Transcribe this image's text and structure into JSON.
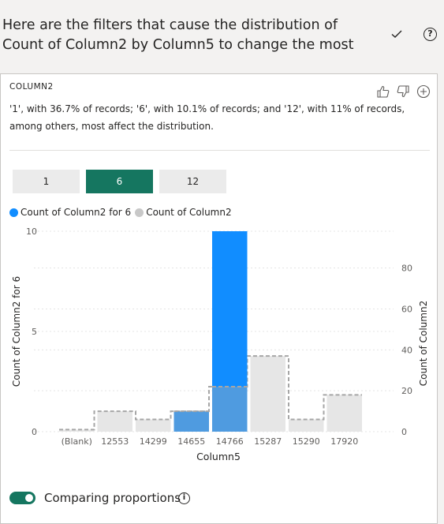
{
  "header": {
    "title": "Here are the filters that cause the distribution of Count of Column2 by Column5 to change the most",
    "check_icon": "checkmark-icon",
    "help_icon": "help-icon",
    "help_glyph": "?"
  },
  "card": {
    "heading": "COLUMN2",
    "description": "'1', with 36.7% of records; '6', with 10.1% of records; and '12', with 11% of records, among others, most affect the distribution.",
    "actions": [
      "thumbs-up-icon",
      "thumbs-down-icon",
      "plus-circle-icon"
    ],
    "filters": [
      {
        "label": "1",
        "active": false
      },
      {
        "label": "6",
        "active": true
      },
      {
        "label": "12",
        "active": false
      }
    ],
    "legend": [
      {
        "label": "Count of Column2 for 6",
        "color": "#118dff"
      },
      {
        "label": "Count of Column2",
        "color": "#c8c8c8"
      }
    ],
    "toggle": {
      "label": "Comparing proportions",
      "on": true,
      "info_glyph": "i"
    }
  },
  "colors": {
    "accent": "#157660",
    "series_primary": "#118dff",
    "series_overlap": "#4f9be0",
    "series_secondary": "#e6e6e6"
  },
  "chart_data": {
    "type": "bar",
    "categories": [
      "(Blank)",
      "12553",
      "14299",
      "14655",
      "14766",
      "15287",
      "15290",
      "17920"
    ],
    "xlabel": "Column5",
    "ylabel": "Count of Column2 for 6",
    "y2label": "Count of Column2",
    "ylim": [
      0,
      10
    ],
    "y2lim": [
      0,
      98
    ],
    "yticks": [
      0,
      5,
      10
    ],
    "y2ticks": [
      0,
      20,
      40,
      60,
      80
    ],
    "series": [
      {
        "name": "Count of Column2 for 6",
        "axis": "left",
        "values": [
          0,
          0,
          0,
          1,
          10,
          0,
          0,
          0
        ]
      },
      {
        "name": "Count of Column2",
        "axis": "right",
        "values": [
          1,
          10,
          6,
          10,
          22,
          37,
          6,
          18
        ]
      }
    ],
    "grid": true,
    "legend": "top-left"
  }
}
